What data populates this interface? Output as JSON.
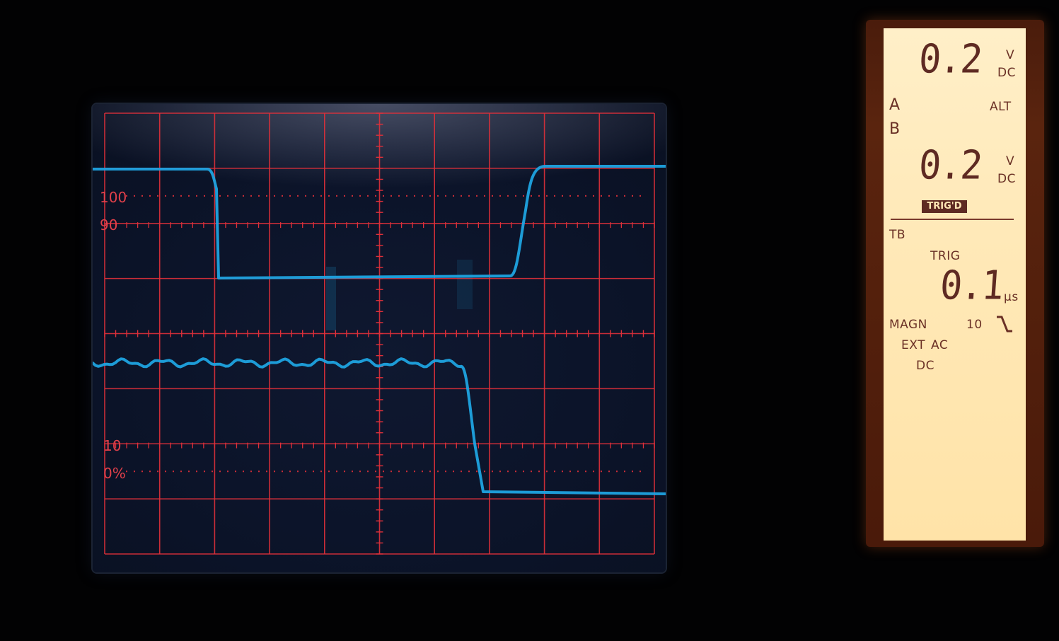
{
  "scope": {
    "labels": {
      "pct100": "100",
      "pct90": "90",
      "pct10": "10",
      "pct0": "0%"
    },
    "grid": {
      "divisions_x": 10,
      "divisions_y": 8,
      "color": "#e0303a"
    },
    "trace_color": "#1fa3e0"
  },
  "lcd": {
    "channel_a_value": "0.2",
    "channel_a_unit_v": "V",
    "channel_a_coupling": "DC",
    "label_a": "A",
    "label_b": "B",
    "mode": "ALT",
    "channel_b_value": "0.2",
    "channel_b_unit_v": "V",
    "channel_b_coupling": "DC",
    "trigd": "TRIG'D",
    "tb": "TB",
    "trig": "TRIG",
    "timebase_value": "0.1",
    "timebase_unit": "µs",
    "magn": "MAGN",
    "magn_value": "10",
    "ext": "EXT",
    "ac": "AC",
    "dc": "DC",
    "slope_icon": "falling-slope-icon",
    "backlight_color": "#ffe9b8"
  }
}
